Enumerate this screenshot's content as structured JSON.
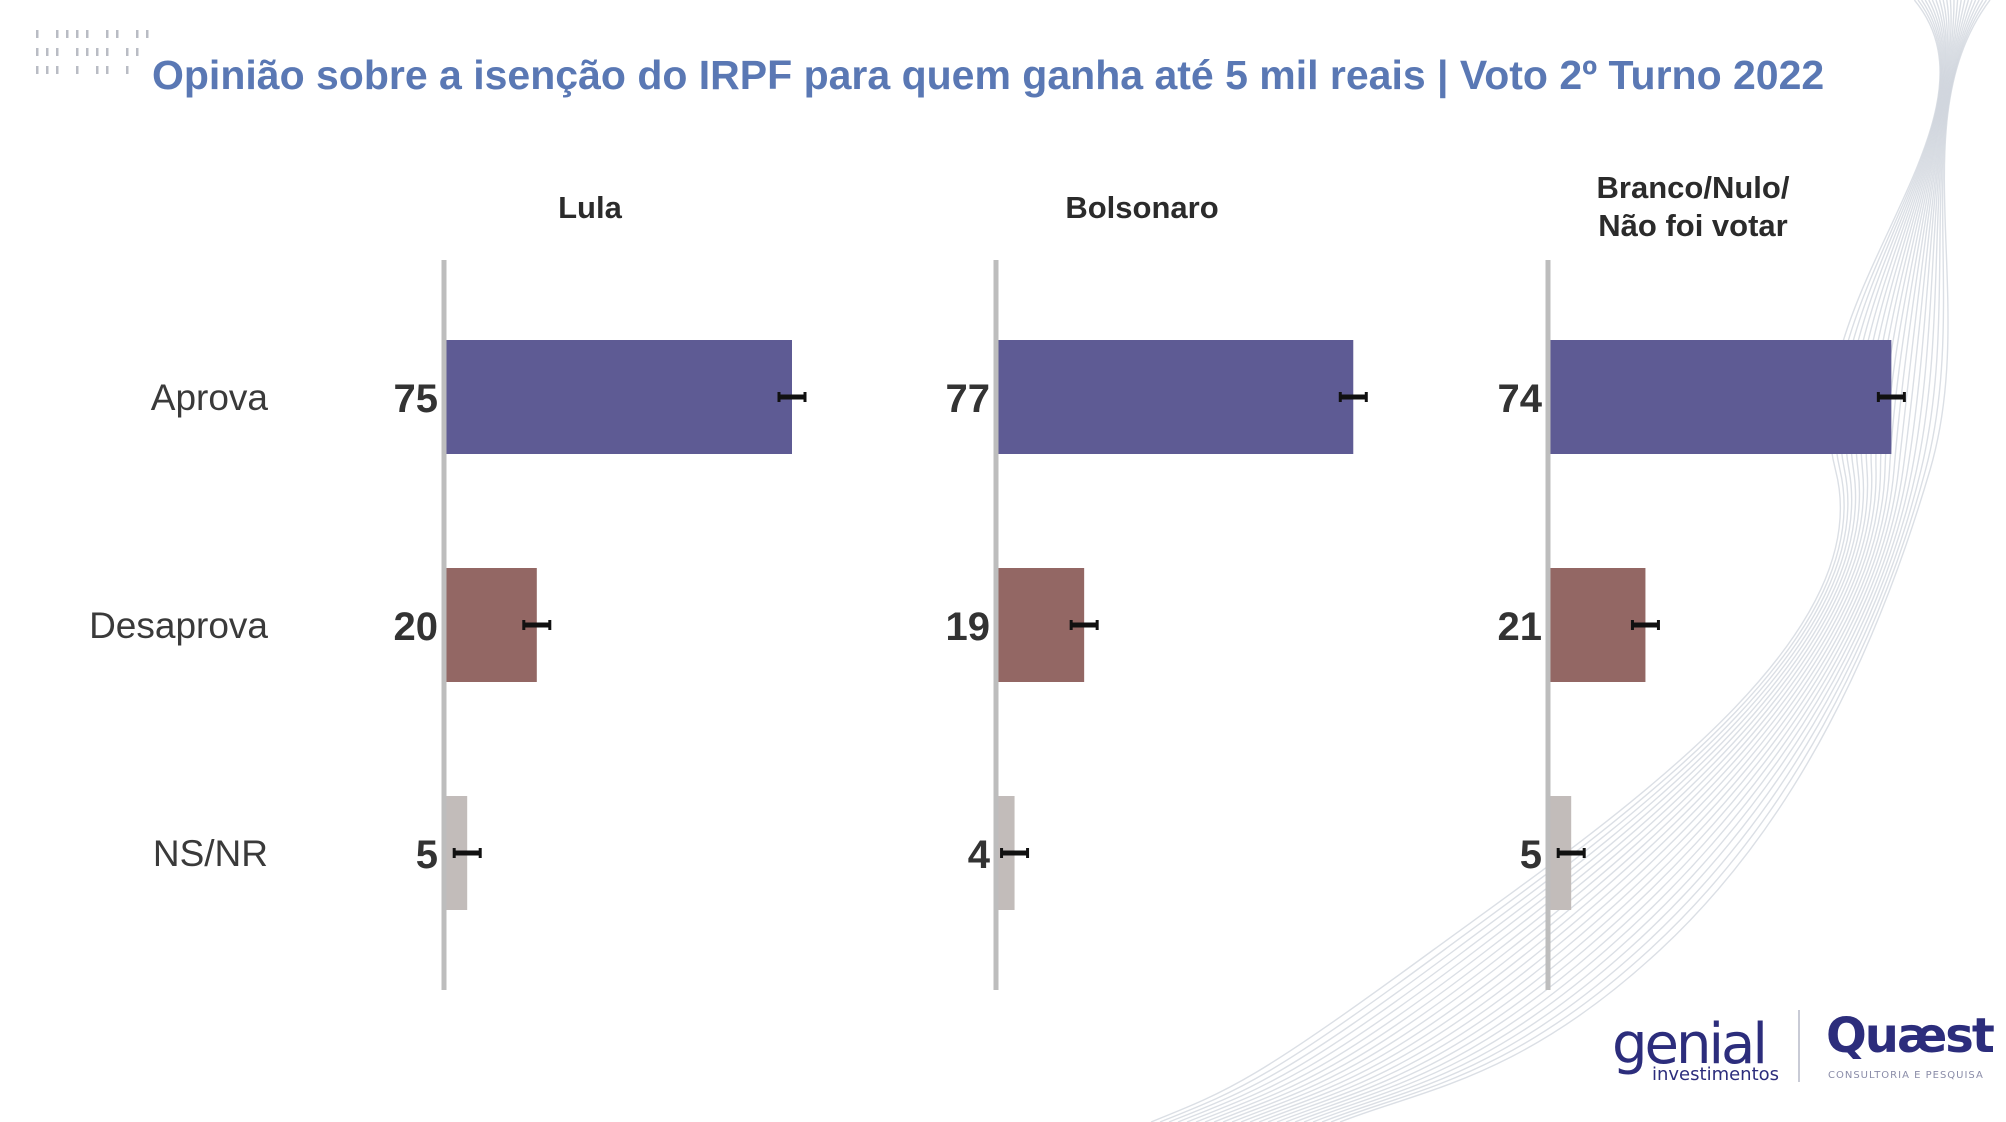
{
  "title": "Opinião sobre a isenção do IRPF para quem ganha até 5 mil reais | Voto 2º Turno 2022",
  "colors": {
    "title": "#5a78b4",
    "aprova": "#5e5b94",
    "desaprova": "#936764",
    "nsnr": "#c2bcba",
    "axis": "#bdbdbd"
  },
  "chart_data": {
    "type": "bar",
    "orientation": "horizontal",
    "categories": [
      "Aprova",
      "Desaprova",
      "NS/NR"
    ],
    "panels": [
      {
        "name": "Lula",
        "values": [
          75,
          20,
          5
        ]
      },
      {
        "name": "Bolsonaro",
        "values": [
          77,
          19,
          4
        ]
      },
      {
        "name": "Branco/Nulo/\nNão foi votar",
        "values": [
          74,
          21,
          5
        ]
      }
    ],
    "error_bars": true,
    "xlim": [
      0,
      100
    ],
    "grid": false,
    "legend": "none"
  },
  "logos": {
    "genial": {
      "name": "genial",
      "subtitle": "investimentos"
    },
    "quaest": {
      "name": "Quæst",
      "subtitle": "CONSULTORIA E PESQUISA"
    }
  }
}
